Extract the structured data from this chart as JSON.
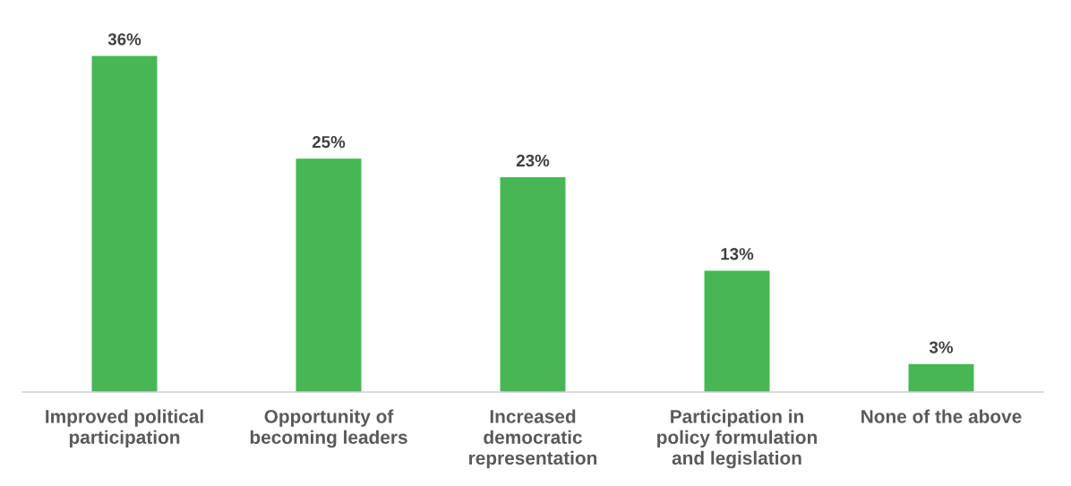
{
  "chart_data": {
    "type": "bar",
    "categories": [
      "Improved political\nparticipation",
      "Opportunity of\nbecoming leaders",
      "Increased\ndemocratic\nrepresentation",
      "Participation in\npolicy formulation\nand legislation",
      "None of the above"
    ],
    "values": [
      36,
      25,
      23,
      13,
      3
    ],
    "value_labels": [
      "36%",
      "25%",
      "23%",
      "13%",
      "3%"
    ],
    "color": "#47b756",
    "grid": false,
    "legend": false,
    "tick_labels": "x"
  }
}
